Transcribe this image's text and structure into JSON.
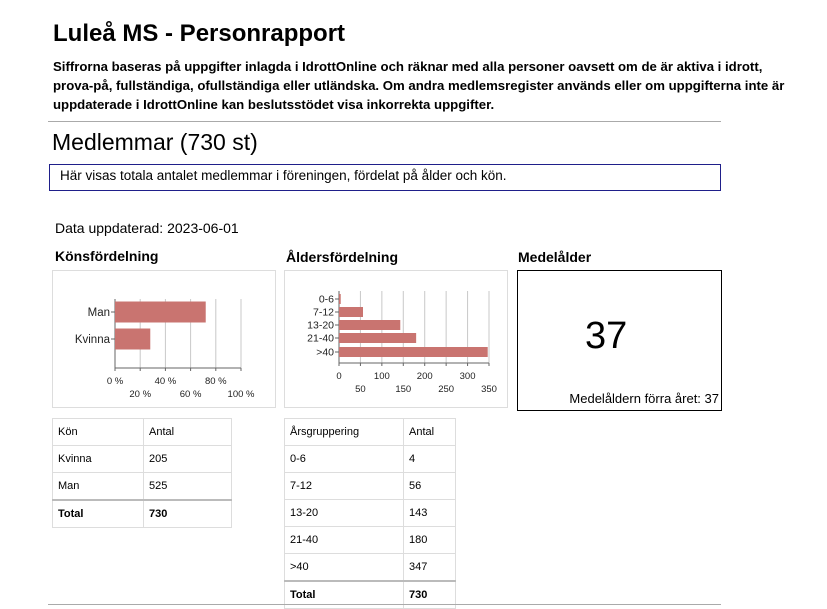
{
  "page": {
    "title": "Luleå MS - Personrapport",
    "intro": "Siffrorna baseras på uppgifter inlagda i IdrottOnline och räknar med alla personer oavsett om de är aktiva i idrott, prova-på, fullständiga, ofullständiga eller utländska. Om andra medlemsregister används eller om uppgifterna inte är uppdaterade i IdrottOnline kan beslutsstödet visa inkorrekta uppgifter."
  },
  "members": {
    "heading": "Medlemmar (730 st)",
    "info": "Här visas totala antalet medlemmar i föreningen, fördelat på ålder och kön.",
    "updated": "Data uppdaterad: 2023-06-01"
  },
  "gender_section": {
    "label": "Könsfördelning",
    "table": {
      "headers": [
        "Kön",
        "Antal"
      ],
      "rows": [
        [
          "Kvinna",
          "205"
        ],
        [
          "Man",
          "525"
        ]
      ],
      "total": [
        "Total",
        "730"
      ]
    }
  },
  "age_section": {
    "label": "Åldersfördelning",
    "table": {
      "headers": [
        "Årsgruppering",
        "Antal"
      ],
      "rows": [
        [
          "0-6",
          "4"
        ],
        [
          "7-12",
          "56"
        ],
        [
          "13-20",
          "143"
        ],
        [
          "21-40",
          "180"
        ],
        [
          ">40",
          "347"
        ]
      ],
      "total": [
        "Total",
        "730"
      ]
    }
  },
  "avg_section": {
    "label": "Medelålder",
    "value": "37",
    "previous": "Medelåldern förra året: 37"
  },
  "chart_data": [
    {
      "type": "bar",
      "orientation": "horizontal",
      "categories": [
        "Man",
        "Kvinna"
      ],
      "values": [
        72,
        28
      ],
      "unit": "%",
      "xlim": [
        0,
        100
      ],
      "ticks": [
        "0 %",
        "20 %",
        "40 %",
        "60 %",
        "80 %",
        "100 %"
      ],
      "grid": true,
      "color": "#c97470"
    },
    {
      "type": "bar",
      "orientation": "horizontal",
      "categories": [
        "0-6",
        "7-12",
        "13-20",
        "21-40",
        ">40"
      ],
      "values": [
        4,
        56,
        143,
        180,
        347
      ],
      "xlim": [
        0,
        350
      ],
      "ticks": [
        "0",
        "50",
        "100",
        "150",
        "200",
        "250",
        "300",
        "350"
      ],
      "grid": true,
      "color": "#c97470"
    }
  ]
}
